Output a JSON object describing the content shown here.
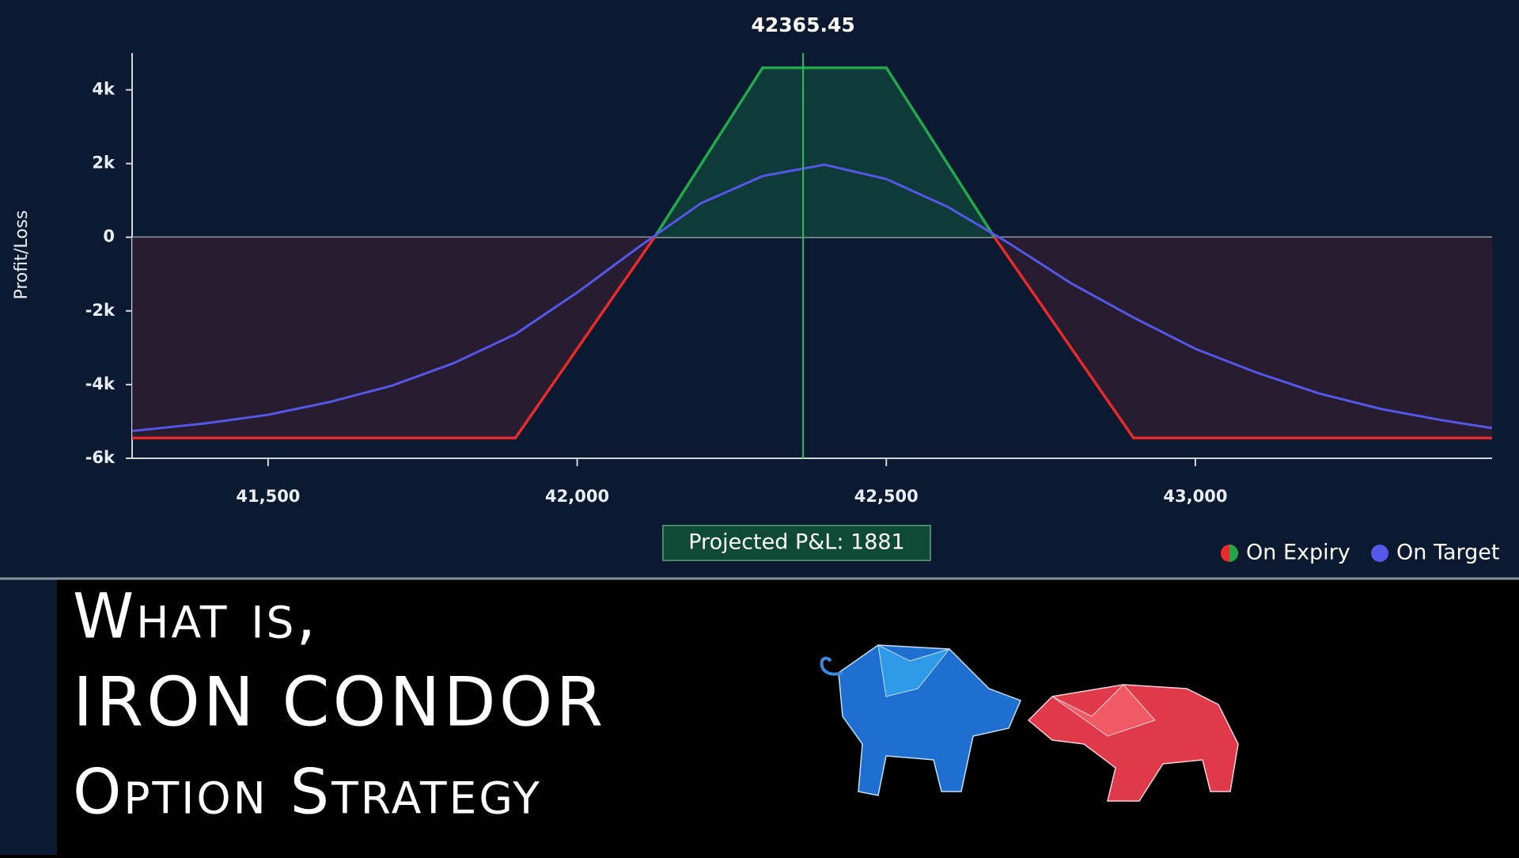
{
  "chart_data": {
    "type": "line",
    "target_price": 42365.45,
    "y_label": "Profit/Loss",
    "annotation": "Projected P&L: 1881",
    "xlim": [
      41280,
      43480
    ],
    "xticks": [
      {
        "value": 41500,
        "label": "41,500"
      },
      {
        "value": 42000,
        "label": "42,000"
      },
      {
        "value": 42500,
        "label": "42,500"
      },
      {
        "value": 43000,
        "label": "43,000"
      }
    ],
    "ylim": [
      -6000,
      5000
    ],
    "yticks": [
      {
        "value": -6000,
        "label": "-6k"
      },
      {
        "value": -4000,
        "label": "-4k"
      },
      {
        "value": -2000,
        "label": "-2k"
      },
      0,
      {
        "value": 2000,
        "label": "2k"
      },
      {
        "value": 4000,
        "label": "4k"
      }
    ],
    "series": [
      {
        "name": "On Expiry",
        "color": "#22a84a",
        "negative_color": "#e82a2a",
        "x": [
          41280,
          41900,
          42125,
          42300,
          42500,
          42675,
          42900,
          43480
        ],
        "values": [
          -5450,
          -5450,
          0,
          4600,
          4600,
          0,
          -5450,
          -5450
        ]
      },
      {
        "name": "On Target",
        "color": "#5457e8",
        "x": [
          41280,
          41400,
          41500,
          41600,
          41700,
          41800,
          41900,
          42000,
          42100,
          42200,
          42300,
          42400,
          42500,
          42600,
          42700,
          42800,
          42900,
          43000,
          43100,
          43200,
          43300,
          43400,
          43480
        ],
        "values": [
          -5260,
          -5050,
          -4820,
          -4470,
          -4030,
          -3420,
          -2630,
          -1500,
          -260,
          920,
          1660,
          1970,
          1580,
          820,
          -180,
          -1260,
          -2180,
          -3030,
          -3680,
          -4240,
          -4660,
          -4970,
          -5180
        ]
      }
    ]
  },
  "banner": {
    "lines": [
      "What is,",
      "IRON CONDOR",
      "Option Strategy"
    ]
  }
}
